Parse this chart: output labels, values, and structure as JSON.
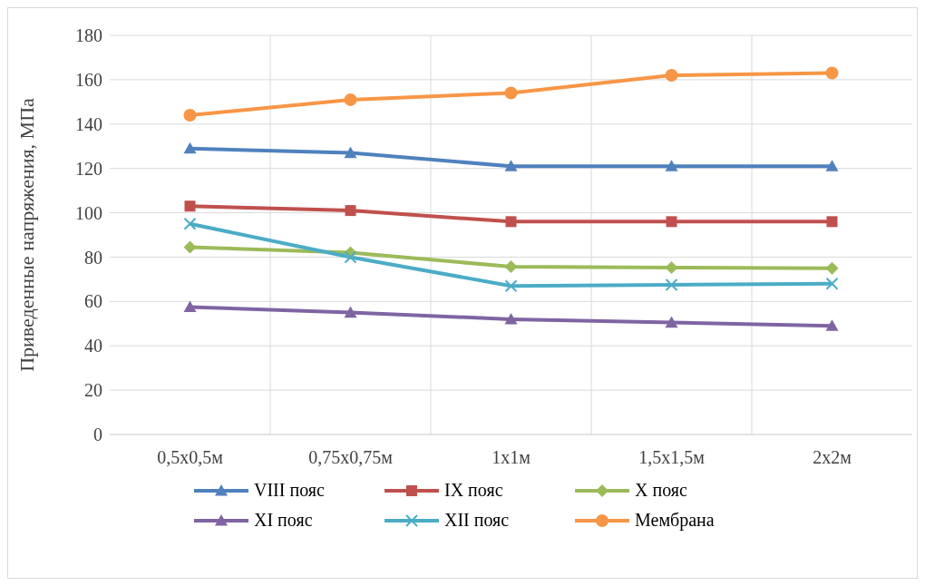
{
  "chart_data": {
    "type": "line",
    "ylabel": "Приведенные напряжения, МПа",
    "categories": [
      "0,5x0,5м",
      "0,75x0,75м",
      "1x1м",
      "1,5x1,5м",
      "2x2м"
    ],
    "ylim": [
      0,
      180
    ],
    "yticks": [
      0,
      20,
      40,
      60,
      80,
      100,
      120,
      140,
      160,
      180
    ],
    "grid": true,
    "legend": "bottom",
    "series": [
      {
        "name": "VIII пояс",
        "color": "#4f81bd",
        "marker": "triangle",
        "values": [
          129,
          127,
          121,
          121,
          121
        ]
      },
      {
        "name": "IX пояс",
        "color": "#c0504d",
        "marker": "square",
        "values": [
          103,
          101,
          96,
          96,
          96
        ]
      },
      {
        "name": "X пояс",
        "color": "#9bbb59",
        "marker": "diamond",
        "values": [
          84.5,
          82,
          75.7,
          75.3,
          75
        ]
      },
      {
        "name": "XI пояс",
        "color": "#8064a2",
        "marker": "triangle",
        "values": [
          57.5,
          55,
          52,
          50.5,
          49
        ]
      },
      {
        "name": "XII пояс",
        "color": "#4bacc6",
        "marker": "cross",
        "values": [
          95,
          80,
          67,
          67.5,
          68
        ]
      },
      {
        "name": "Мембрана",
        "color": "#f79646",
        "marker": "circle",
        "values": [
          144,
          151,
          154,
          162,
          163
        ]
      }
    ]
  }
}
